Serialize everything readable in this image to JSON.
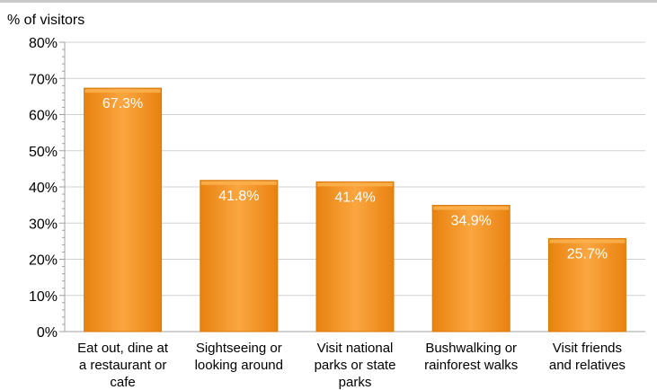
{
  "chart_data": {
    "type": "bar",
    "ylabel": "% of visitors",
    "ylim": [
      0,
      80
    ],
    "yticks": [
      0,
      10,
      20,
      30,
      40,
      50,
      60,
      70,
      80
    ],
    "ytick_labels": [
      "0%",
      "10%",
      "20%",
      "30%",
      "40%",
      "50%",
      "60%",
      "70%",
      "80%"
    ],
    "grid": true,
    "categories": [
      "Eat out, dine at a restaurant or cafe",
      "Sightseeing or looking around",
      "Visit national parks or state parks",
      "Bushwalking or rainforest walks",
      "Visit friends and relatives"
    ],
    "category_lines": [
      [
        "Eat out, dine at",
        "a restaurant or",
        "cafe"
      ],
      [
        "Sightseeing or",
        "looking around"
      ],
      [
        "Visit national",
        "parks or state",
        "parks"
      ],
      [
        "Bushwalking or",
        "rainforest walks"
      ],
      [
        "Visit friends",
        "and relatives"
      ]
    ],
    "values": [
      67.3,
      41.8,
      41.4,
      34.9,
      25.7
    ],
    "data_labels": [
      "67.3%",
      "41.8%",
      "41.4%",
      "34.9%",
      "25.7%"
    ],
    "colors": {
      "bar": "#f7941d",
      "bar_light": "#fbb04c",
      "bar_dark": "#d9780a",
      "grid": "#d0d0d0",
      "axis": "#a0a0a0"
    }
  }
}
